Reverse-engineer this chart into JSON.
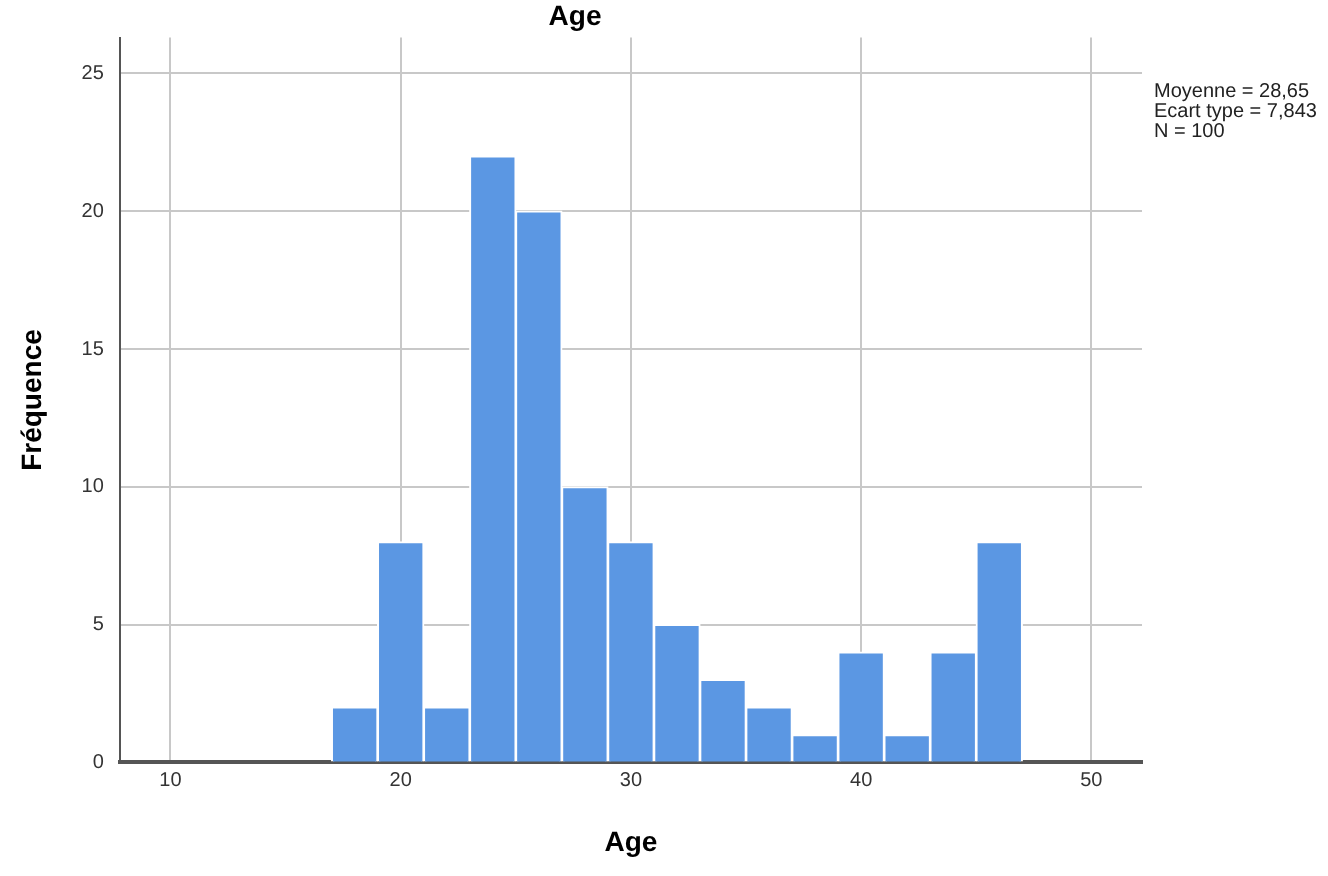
{
  "chart_data": {
    "type": "histogram",
    "title": "Age",
    "xlabel": "Age",
    "ylabel": "Fréquence",
    "bins": [
      17,
      19,
      21,
      23,
      25,
      27,
      29,
      31,
      33,
      35,
      37,
      39,
      41,
      43,
      45,
      47
    ],
    "values": [
      2,
      8,
      2,
      22,
      20,
      10,
      8,
      5,
      3,
      2,
      1,
      4,
      1,
      4,
      8
    ],
    "color": "#5b97e3",
    "xlim": [
      7.8,
      52.2
    ],
    "xticks": [
      10,
      20,
      30,
      40,
      50
    ],
    "ylim": [
      0,
      26.3
    ],
    "yticks": [
      0,
      5,
      10,
      15,
      20,
      25
    ],
    "grid": true,
    "legend": false,
    "annotations": [
      "Moyenne = 28,65",
      "Ecart type = 7,843",
      "N = 100"
    ]
  }
}
